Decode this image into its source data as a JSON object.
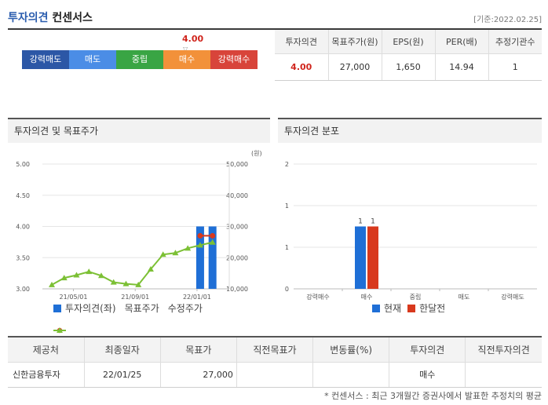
{
  "header": {
    "title_main": "투자의견",
    "title_sub": "컨센서스",
    "date": "[기준:2022.02.25]"
  },
  "opinion_scale": {
    "value": "4.00",
    "marker": "▽",
    "segments": [
      "강력매도",
      "매도",
      "중립",
      "매수",
      "강력매수"
    ]
  },
  "summary": {
    "headers": [
      "투자의견",
      "목표주가(원)",
      "EPS(원)",
      "PER(배)",
      "추정기관수"
    ],
    "values": [
      "4.00",
      "27,000",
      "1,650",
      "14.94",
      "1"
    ]
  },
  "left_panel": {
    "title": "투자의견 및 목표주가"
  },
  "right_panel": {
    "title": "투자의견 분포"
  },
  "legend_left": [
    "투자의견(좌)",
    "목표주가",
    "수정주가"
  ],
  "legend_right": [
    "현재",
    "한달전"
  ],
  "colors": {
    "blue": "#1f6fd6",
    "red": "#d8391d",
    "green": "#7cc035"
  },
  "chart_data": [
    {
      "type": "line",
      "title": "투자의견 및 목표주가",
      "ylabel_right": "(원)",
      "x_ticks": [
        "21/05/01",
        "21/09/01",
        "22/01/01"
      ],
      "yleft": {
        "min": 3.0,
        "max": 5.0,
        "ticks": [
          "5.00",
          "4.50",
          "4.00",
          "3.50",
          "3.00"
        ]
      },
      "yright": {
        "min": 10000,
        "max": 50000,
        "ticks": [
          "50,000",
          "40,000",
          "30,000",
          "20,000",
          "10,000"
        ]
      },
      "series": [
        {
          "name": "투자의견(좌)",
          "kind": "bar",
          "axis": "left",
          "x_index": [
            12,
            13
          ],
          "values": [
            4.0,
            4.0
          ]
        },
        {
          "name": "목표주가",
          "kind": "line",
          "axis": "right",
          "x_index": [
            12,
            13
          ],
          "values": [
            27000,
            27000
          ]
        },
        {
          "name": "수정주가",
          "kind": "line",
          "axis": "right",
          "x_index": [
            0,
            1,
            2,
            3,
            4,
            5,
            6,
            7,
            8,
            9,
            10,
            11,
            12,
            13
          ],
          "values": [
            11300,
            13500,
            14400,
            15500,
            14200,
            12100,
            11600,
            11300,
            16300,
            21000,
            21500,
            23000,
            24000,
            24900
          ]
        }
      ]
    },
    {
      "type": "bar",
      "title": "투자의견 분포",
      "categories": [
        "강력매수",
        "매수",
        "중립",
        "매도",
        "강력매도"
      ],
      "ylim": [
        0,
        2
      ],
      "y_ticks": [
        "2",
        "1",
        "1",
        "0"
      ],
      "series": [
        {
          "name": "현재",
          "values": [
            0,
            1,
            0,
            0,
            0
          ],
          "labels": [
            "",
            "1",
            "",
            "",
            ""
          ]
        },
        {
          "name": "한달전",
          "values": [
            0,
            1,
            0,
            0,
            0
          ],
          "labels": [
            "",
            "1",
            "",
            "",
            ""
          ]
        }
      ]
    }
  ],
  "broker_table": {
    "headers": [
      "제공처",
      "최종일자",
      "목표가",
      "직전목표가",
      "변동률(%)",
      "투자의견",
      "직전투자의견"
    ],
    "rows": [
      [
        "신한금융투자",
        "22/01/25",
        "27,000",
        "",
        "",
        "매수",
        ""
      ]
    ]
  },
  "footnote": "* 컨센서스 : 최근 3개월간 증권사에서 발표한 추정치의 평균"
}
